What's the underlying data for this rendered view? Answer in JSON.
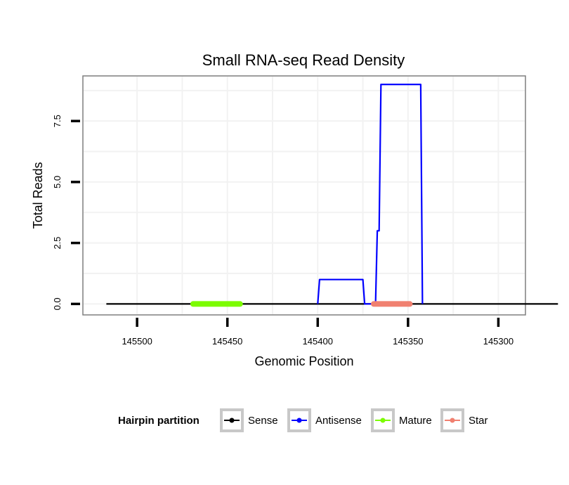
{
  "chart_data": {
    "type": "line",
    "title": "Small RNA-seq Read Density",
    "xlabel": "Genomic Position",
    "ylabel": "Total Reads",
    "x_reversed": true,
    "xlim": [
      145285,
      145530
    ],
    "ylim": [
      -0.45,
      9.35
    ],
    "x_ticks": [
      145500,
      145450,
      145400,
      145350,
      145300
    ],
    "x_tick_labels": [
      "145500",
      "145450",
      "145400",
      "145350",
      "145300"
    ],
    "y_ticks": [
      0,
      2.5,
      5,
      7.5
    ],
    "y_tick_labels": [
      "0.0",
      "2.5",
      "5.0",
      "7.5"
    ],
    "grid": true,
    "legend": {
      "title": "Hairpin partition",
      "position": "bottom",
      "entries": [
        {
          "name": "Sense",
          "color": "#000000"
        },
        {
          "name": "Antisense",
          "color": "#0000ff"
        },
        {
          "name": "Mature",
          "color": "#7cfc00"
        },
        {
          "name": "Star",
          "color": "#f08070"
        }
      ]
    },
    "series": [
      {
        "name": "Sense",
        "color": "#000000",
        "x": [
          145517,
          145267
        ],
        "y": [
          0,
          0
        ]
      },
      {
        "name": "Antisense",
        "color": "#0000ff",
        "x": [
          145400,
          145399,
          145375,
          145374,
          145368,
          145367,
          145366,
          145365,
          145343,
          145342
        ],
        "y": [
          0,
          1,
          1,
          0,
          0,
          3,
          3,
          9,
          9,
          0
        ]
      },
      {
        "name": "Mature",
        "color": "#7cfc00",
        "x": [
          145469,
          145443
        ],
        "y": [
          0,
          0
        ]
      },
      {
        "name": "Star",
        "color": "#f08070",
        "x": [
          145369,
          145349
        ],
        "y": [
          0,
          0
        ]
      }
    ]
  }
}
